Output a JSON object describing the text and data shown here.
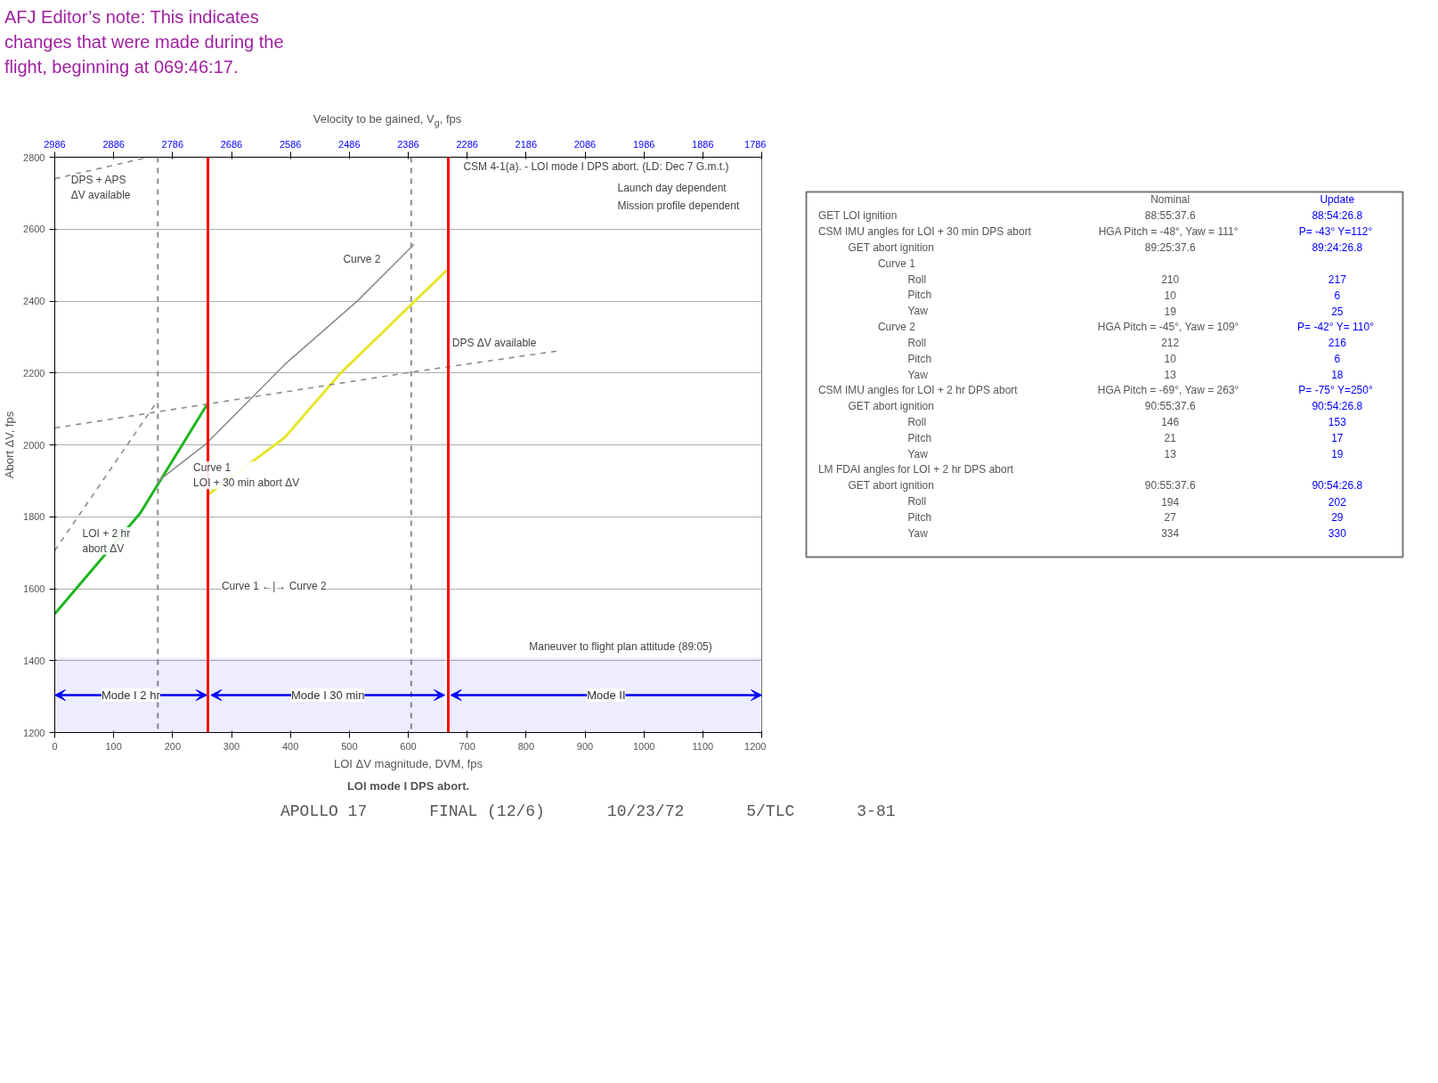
{
  "chart_data": [
    {
      "type": "line",
      "title": "LOI mode I DPS abort.",
      "xlabel": "LOI ΔV magnitude, DVM, fps",
      "ylabel": "Abort ΔV, fps",
      "x2label": "Velocity to be gained, V$_{g}$, fps",
      "xlim": [
        0,
        1200
      ],
      "ylim": [
        1200,
        2800
      ],
      "x2lim": [
        2986,
        1786
      ],
      "xticks": [
        0,
        100,
        200,
        300,
        400,
        500,
        600,
        700,
        800,
        900,
        1000,
        1100,
        1200
      ],
      "yticks": [
        1200,
        1400,
        1600,
        1800,
        2000,
        2200,
        2400,
        2600,
        2800
      ],
      "x2ticks": [
        2986,
        2886,
        2786,
        2686,
        2586,
        2486,
        2386,
        2286,
        2186,
        2086,
        1986,
        1886,
        1786
      ],
      "grid": true,
      "marker": "none",
      "series": [
        {
          "color": "#1fb51f",
          "x": [
            0,
            145,
            258
          ],
          "values": [
            1530,
            1810,
            2111
          ]
        },
        {
          "color": "#e6e62e",
          "x": [
            260,
            390,
            486,
            665
          ],
          "values": [
            1862,
            2020,
            2201,
            2485
          ]
        },
        {
          "color": "#8c8c8c",
          "x": [
            175,
            257,
            390,
            513,
            610
          ],
          "values": [
            1899,
            2003,
            2223,
            2399,
            2558
          ]
        },
        {
          "color": "#8c8c8c",
          "line_style": "dashed",
          "x": [
            0,
            175
          ],
          "values": [
            1706,
            2124
          ]
        },
        {
          "color": "#8c8c8c",
          "line_style": "dashed",
          "x": [
            0,
            257,
            600,
            857
          ],
          "values": [
            2047,
            2113,
            2201,
            2262
          ]
        },
        {
          "color": "#8c8c8c",
          "line_style": "dashed",
          "x": [
            0,
            159
          ],
          "values": [
            2740,
            2800
          ]
        }
      ],
      "ref_lines": [
        {
          "axis": "x",
          "value": 260,
          "color": "#ff0000",
          "line_style": "solid"
        },
        {
          "axis": "x",
          "value": 668,
          "color": "#ff0000",
          "line_style": "solid"
        },
        {
          "axis": "x",
          "value": 175,
          "color": "#8c8c8c",
          "line_style": "dashed"
        },
        {
          "axis": "x",
          "value": 605,
          "color": "#8c8c8c",
          "line_style": "dashed"
        }
      ],
      "bands": [
        {
          "axis": "x",
          "from": 0,
          "to": 258,
          "label": "Mode I 2 hr",
          "color": "#0000ff"
        },
        {
          "axis": "x",
          "from": 265,
          "to": 662,
          "label": "Mode I 30 min",
          "color": "#0000ff"
        },
        {
          "axis": "x",
          "from": 672,
          "to": 1200,
          "label": "Mode II",
          "color": "#0000ff"
        }
      ],
      "annotations": [
        "AFJ Editor’s note: This indicates changes that were made during the flight, beginning at 069:46:17.",
        "APOLLO 17",
        "FINAL (12/6)",
        "10/23/72",
        "5/TLC",
        "3-81",
        "DPS + APS\nΔV available",
        "Curve 2",
        "Curve 1\nLOI + 30 min abort ΔV",
        "LOI + 2 hr\nabort ΔV",
        "Curve 1 ←|→ Curve 2",
        "DPS ΔV available",
        "Maneuver to flight plan attitude (89:05)",
        "CSM 4-1(a). - LOI mode I DPS abort. (LD: Dec 7 G.m.t.)",
        "Launch day dependent",
        "Mission profile dependent"
      ]
    },
    {
      "type": "other",
      "annotations": [
        "\tNominal\tUpdate",
        "GET LOI ignition\t88:55:37.6\t88:54:26.8",
        "CSM IMU angles for LOI + 30 min DPS abort\tHGA  Pitch = -48°, Yaw = 111°\tP= -43°  Y=112°",
        "\tGET abort ignition\t89:25:37.6\t89:24:26.8",
        "\t\tCurve 1\t\t",
        "\t\t\tRoll\t210\t217",
        "\t\t\tPitch\t10\t6",
        "\t\t\tYaw\t19\t25",
        "\t\tCurve 2\tHGA  Pitch = -45°, Yaw = 109°\tP= -42°  Y= 110°",
        "\t\t\tRoll\t212\t216",
        "\t\t\tPitch\t10\t6",
        "\t\t\tYaw\t13\t18",
        "CSM IMU angles for LOI + 2 hr DPS abort\tHGA  Pitch = -69°, Yaw = 263°\tP= -75°  Y=250°",
        "\tGET abort ignition\t90:55:37.6\t90:54:26.8",
        "\t\t\tRoll\t146\t153",
        "\t\t\tPitch\t21\t17",
        "\t\t\tYaw\t13\t19",
        "LM FDAI angles for LOI + 2 hr DPS abort\t\t",
        "\tGET abort ignition\t90:55:37.6\t90:54:26.8",
        "\t\t\tRoll\t194\t202",
        "\t\t\tPitch\t27\t29",
        "\t\t\tYaw\t334\t330"
      ]
    }
  ]
}
